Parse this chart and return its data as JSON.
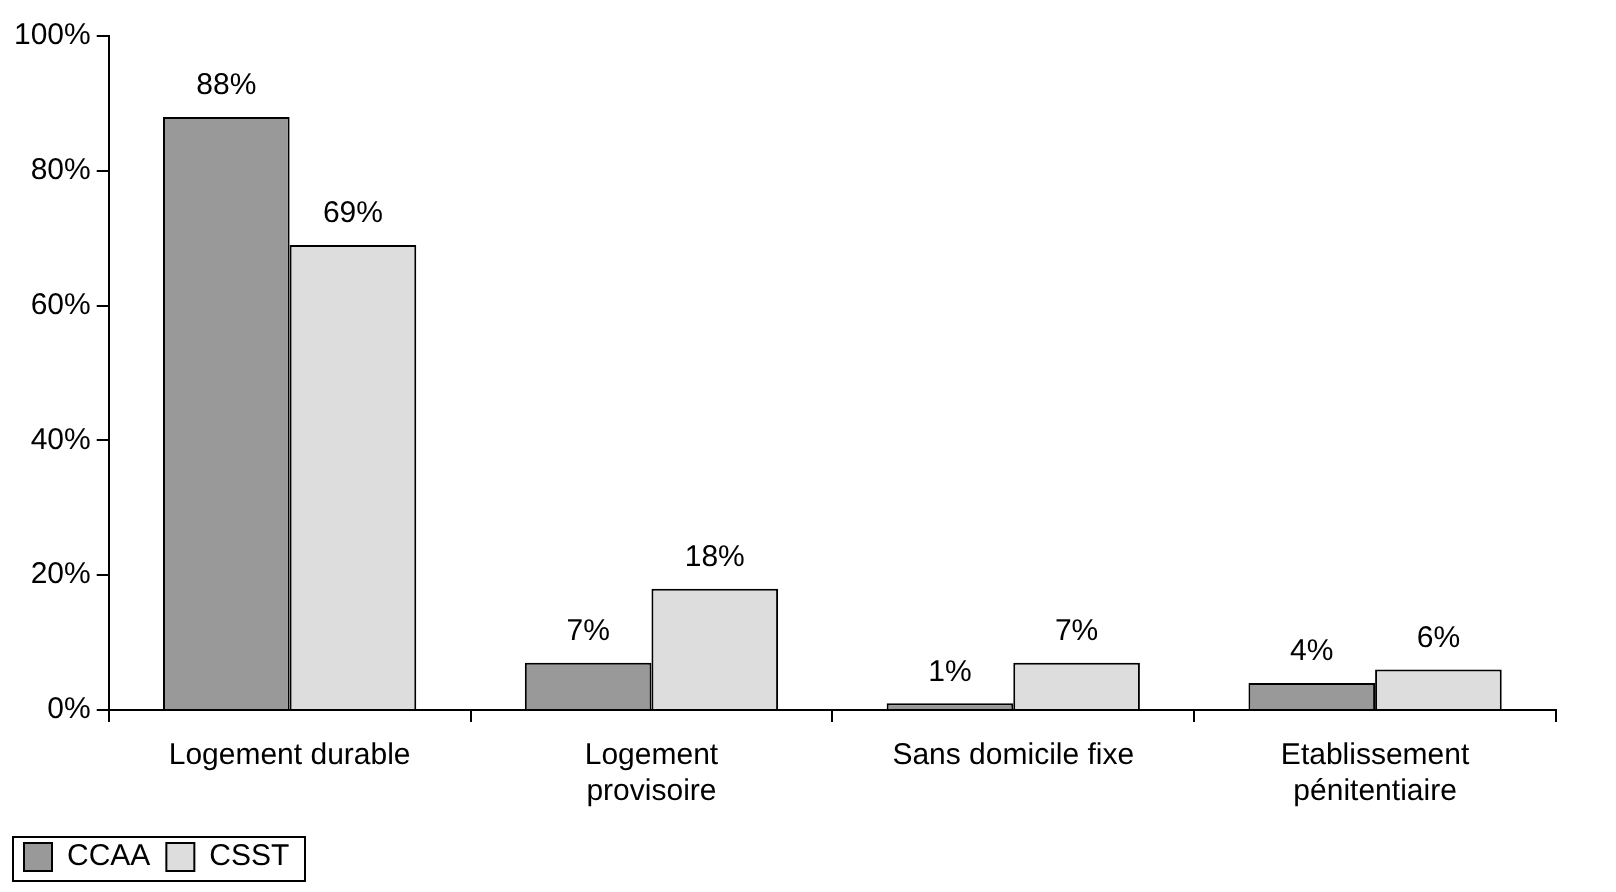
{
  "chart_data": {
    "type": "bar",
    "categories": [
      "Logement durable",
      "Logement\nprovisoire",
      "Sans domicile fixe",
      "Etablissement\npénitentiaire"
    ],
    "series": [
      {
        "name": "CCAA",
        "color": "#999999",
        "values": [
          88,
          7,
          1,
          4
        ],
        "value_labels": [
          "88%",
          "7%",
          "1%",
          "4%"
        ]
      },
      {
        "name": "CSST",
        "color": "#dddddd",
        "values": [
          69,
          18,
          7,
          6
        ],
        "value_labels": [
          "69%",
          "18%",
          "7%",
          "6%"
        ]
      }
    ],
    "ylim": [
      0,
      100
    ],
    "yticks": [
      {
        "value": 0,
        "label": "0%"
      },
      {
        "value": 20,
        "label": "20%"
      },
      {
        "value": 40,
        "label": "40%"
      },
      {
        "value": 60,
        "label": "60%"
      },
      {
        "value": 80,
        "label": "80%"
      },
      {
        "value": 100,
        "label": "100%"
      }
    ],
    "grid": false,
    "legend": "bottom left"
  }
}
